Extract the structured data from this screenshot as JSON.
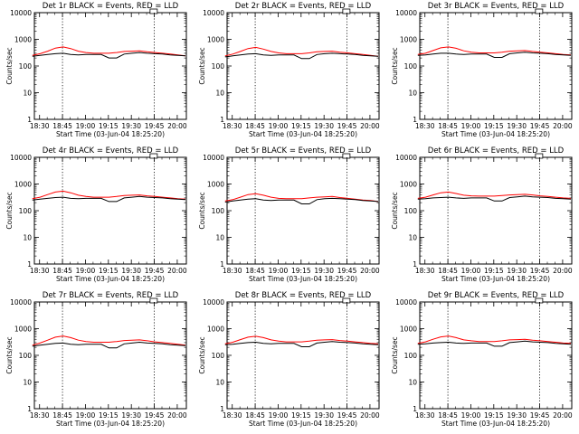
{
  "figure": {
    "ylabel": "Counts/sec",
    "xlabel": "Start Time (03-Jun-04 18:25:20)",
    "x_ticks": [
      "18:30",
      "18:45",
      "19:00",
      "19:15",
      "19:30",
      "19:45",
      "20:00"
    ],
    "y_ticks": [
      "1",
      "10",
      "100",
      "1000",
      "10000"
    ],
    "colors": {
      "events": "#000000",
      "lld": "#ff0000",
      "axes": "#000000"
    }
  },
  "chart_data": [
    {
      "type": "line",
      "title": "Det 1r BLACK = Events, RED = LLD",
      "xlabel": "Start Time (03-Jun-04 18:25:20)",
      "ylabel": "Counts/sec",
      "y_scale": "log",
      "ylim": [
        1,
        10000
      ],
      "x_unit": "minutes after 18:25:20",
      "xlim": [
        0,
        100
      ],
      "x": [
        0,
        5,
        10,
        15,
        20,
        25,
        30,
        35,
        40,
        45,
        50,
        55,
        60,
        65,
        70,
        75,
        80,
        85,
        90,
        95,
        100
      ],
      "series": [
        {
          "name": "Events",
          "color": "#000000",
          "values": [
            230,
            250,
            270,
            290,
            300,
            270,
            260,
            270,
            270,
            270,
            200,
            200,
            280,
            300,
            320,
            300,
            290,
            280,
            260,
            250,
            240
          ]
        },
        {
          "name": "LLD",
          "color": "#ff0000",
          "values": [
            250,
            290,
            360,
            470,
            520,
            450,
            360,
            320,
            300,
            300,
            300,
            320,
            350,
            360,
            370,
            340,
            320,
            300,
            280,
            260,
            240
          ]
        }
      ]
    },
    {
      "type": "line",
      "title": "Det 2r BLACK = Events, RED = LLD",
      "xlabel": "Start Time (03-Jun-04 18:25:20)",
      "ylabel": "Counts/sec",
      "y_scale": "log",
      "ylim": [
        1,
        10000
      ],
      "x_unit": "minutes after 18:25:20",
      "xlim": [
        0,
        100
      ],
      "x": [
        0,
        5,
        10,
        15,
        20,
        25,
        30,
        35,
        40,
        45,
        50,
        55,
        60,
        65,
        70,
        75,
        80,
        85,
        90,
        95,
        100
      ],
      "series": [
        {
          "name": "Events",
          "color": "#000000",
          "values": [
            220,
            240,
            260,
            280,
            290,
            260,
            250,
            260,
            260,
            260,
            190,
            190,
            270,
            290,
            300,
            290,
            280,
            270,
            250,
            240,
            230
          ]
        },
        {
          "name": "LLD",
          "color": "#ff0000",
          "values": [
            240,
            280,
            350,
            450,
            500,
            430,
            350,
            310,
            290,
            290,
            290,
            310,
            340,
            350,
            360,
            330,
            310,
            290,
            270,
            250,
            230
          ]
        }
      ]
    },
    {
      "type": "line",
      "title": "Det 3r BLACK = Events, RED = LLD",
      "xlabel": "Start Time (03-Jun-04 18:25:20)",
      "ylabel": "Counts/sec",
      "y_scale": "log",
      "ylim": [
        1,
        10000
      ],
      "x_unit": "minutes after 18:25:20",
      "xlim": [
        0,
        100
      ],
      "x": [
        0,
        5,
        10,
        15,
        20,
        25,
        30,
        35,
        40,
        45,
        50,
        55,
        60,
        65,
        70,
        75,
        80,
        85,
        90,
        95,
        100
      ],
      "series": [
        {
          "name": "Events",
          "color": "#000000",
          "values": [
            250,
            260,
            280,
            300,
            300,
            280,
            270,
            280,
            280,
            280,
            210,
            210,
            290,
            310,
            330,
            310,
            300,
            290,
            270,
            260,
            250
          ]
        },
        {
          "name": "LLD",
          "color": "#ff0000",
          "values": [
            270,
            300,
            380,
            480,
            520,
            460,
            370,
            330,
            310,
            310,
            310,
            330,
            360,
            370,
            380,
            350,
            330,
            310,
            290,
            270,
            260
          ]
        }
      ]
    },
    {
      "type": "line",
      "title": "Det 4r BLACK = Events, RED = LLD",
      "xlabel": "Start Time (03-Jun-04 18:25:20)",
      "ylabel": "Counts/sec",
      "y_scale": "log",
      "ylim": [
        1,
        10000
      ],
      "x_unit": "minutes after 18:25:20",
      "xlim": [
        0,
        100
      ],
      "x": [
        0,
        5,
        10,
        15,
        20,
        25,
        30,
        35,
        40,
        45,
        50,
        55,
        60,
        65,
        70,
        75,
        80,
        85,
        90,
        95,
        100
      ],
      "series": [
        {
          "name": "Events",
          "color": "#000000",
          "values": [
            250,
            270,
            290,
            310,
            320,
            290,
            280,
            290,
            290,
            290,
            220,
            220,
            300,
            320,
            340,
            320,
            310,
            300,
            280,
            270,
            260
          ]
        },
        {
          "name": "LLD",
          "color": "#ff0000",
          "values": [
            280,
            320,
            400,
            500,
            540,
            470,
            380,
            340,
            320,
            320,
            320,
            340,
            370,
            380,
            390,
            360,
            340,
            320,
            300,
            280,
            270
          ]
        }
      ]
    },
    {
      "type": "line",
      "title": "Det 5r BLACK = Events, RED = LLD",
      "xlabel": "Start Time (03-Jun-04 18:25:20)",
      "ylabel": "Counts/sec",
      "y_scale": "log",
      "ylim": [
        1,
        10000
      ],
      "x_unit": "minutes after 18:25:20",
      "xlim": [
        0,
        100
      ],
      "x": [
        0,
        5,
        10,
        15,
        20,
        25,
        30,
        35,
        40,
        45,
        50,
        55,
        60,
        65,
        70,
        75,
        80,
        85,
        90,
        95,
        100
      ],
      "series": [
        {
          "name": "Events",
          "color": "#000000",
          "values": [
            210,
            230,
            250,
            270,
            280,
            250,
            240,
            250,
            250,
            250,
            180,
            180,
            260,
            280,
            290,
            280,
            270,
            260,
            240,
            230,
            220
          ]
        },
        {
          "name": "LLD",
          "color": "#ff0000",
          "values": [
            230,
            260,
            320,
            400,
            430,
            380,
            320,
            290,
            280,
            280,
            280,
            300,
            320,
            330,
            340,
            310,
            290,
            270,
            250,
            240,
            220
          ]
        }
      ]
    },
    {
      "type": "line",
      "title": "Det 6r BLACK = Events, RED = LLD",
      "xlabel": "Start Time (03-Jun-04 18:25:20)",
      "ylabel": "Counts/sec",
      "y_scale": "log",
      "ylim": [
        1,
        10000
      ],
      "x_unit": "minutes after 18:25:20",
      "xlim": [
        0,
        100
      ],
      "x": [
        0,
        5,
        10,
        15,
        20,
        25,
        30,
        35,
        40,
        45,
        50,
        55,
        60,
        65,
        70,
        75,
        80,
        85,
        90,
        95,
        100
      ],
      "series": [
        {
          "name": "Events",
          "color": "#000000",
          "values": [
            270,
            280,
            300,
            310,
            320,
            300,
            290,
            300,
            300,
            300,
            230,
            230,
            310,
            330,
            350,
            330,
            320,
            310,
            290,
            280,
            270
          ]
        },
        {
          "name": "LLD",
          "color": "#ff0000",
          "values": [
            290,
            320,
            390,
            470,
            500,
            440,
            380,
            360,
            350,
            350,
            350,
            370,
            390,
            400,
            410,
            390,
            360,
            340,
            320,
            300,
            290
          ]
        }
      ]
    },
    {
      "type": "line",
      "title": "Det 7r BLACK = Events, RED = LLD",
      "xlabel": "Start Time (03-Jun-04 18:25:20)",
      "ylabel": "Counts/sec",
      "y_scale": "log",
      "ylim": [
        1,
        10000
      ],
      "x_unit": "minutes after 18:25:20",
      "xlim": [
        0,
        100
      ],
      "x": [
        0,
        5,
        10,
        15,
        20,
        25,
        30,
        35,
        40,
        45,
        50,
        55,
        60,
        65,
        70,
        75,
        80,
        85,
        90,
        95,
        100
      ],
      "series": [
        {
          "name": "Events",
          "color": "#000000",
          "values": [
            220,
            240,
            260,
            280,
            290,
            260,
            250,
            260,
            260,
            260,
            190,
            190,
            270,
            290,
            310,
            290,
            280,
            270,
            250,
            240,
            230
          ]
        },
        {
          "name": "LLD",
          "color": "#ff0000",
          "values": [
            240,
            290,
            370,
            480,
            530,
            460,
            370,
            330,
            310,
            310,
            310,
            330,
            360,
            370,
            380,
            350,
            320,
            300,
            280,
            260,
            240
          ]
        }
      ]
    },
    {
      "type": "line",
      "title": "Det 8r BLACK = Events, RED = LLD",
      "xlabel": "Start Time (03-Jun-04 18:25:20)",
      "ylabel": "Counts/sec",
      "y_scale": "log",
      "ylim": [
        1,
        10000
      ],
      "x_unit": "minutes after 18:25:20",
      "xlim": [
        0,
        100
      ],
      "x": [
        0,
        5,
        10,
        15,
        20,
        25,
        30,
        35,
        40,
        45,
        50,
        55,
        60,
        65,
        70,
        75,
        80,
        85,
        90,
        95,
        100
      ],
      "series": [
        {
          "name": "Events",
          "color": "#000000",
          "values": [
            250,
            260,
            280,
            300,
            310,
            280,
            270,
            280,
            280,
            280,
            210,
            210,
            290,
            310,
            330,
            310,
            300,
            290,
            270,
            260,
            250
          ]
        },
        {
          "name": "LLD",
          "color": "#ff0000",
          "values": [
            270,
            310,
            390,
            480,
            520,
            460,
            380,
            340,
            320,
            320,
            320,
            340,
            370,
            380,
            390,
            360,
            340,
            320,
            300,
            280,
            270
          ]
        }
      ]
    },
    {
      "type": "line",
      "title": "Det 9r BLACK = Events, RED = LLD",
      "xlabel": "Start Time (03-Jun-04 18:25:20)",
      "ylabel": "Counts/sec",
      "y_scale": "log",
      "ylim": [
        1,
        10000
      ],
      "x_unit": "minutes after 18:25:20",
      "xlim": [
        0,
        100
      ],
      "x": [
        0,
        5,
        10,
        15,
        20,
        25,
        30,
        35,
        40,
        45,
        50,
        55,
        60,
        65,
        70,
        75,
        80,
        85,
        90,
        95,
        100
      ],
      "series": [
        {
          "name": "Events",
          "color": "#000000",
          "values": [
            260,
            270,
            290,
            300,
            310,
            290,
            280,
            290,
            290,
            290,
            220,
            220,
            300,
            320,
            340,
            320,
            310,
            300,
            280,
            270,
            260
          ]
        },
        {
          "name": "LLD",
          "color": "#ff0000",
          "values": [
            280,
            320,
            400,
            490,
            530,
            460,
            380,
            350,
            330,
            330,
            330,
            350,
            380,
            390,
            400,
            370,
            350,
            330,
            310,
            290,
            280
          ]
        }
      ]
    }
  ]
}
